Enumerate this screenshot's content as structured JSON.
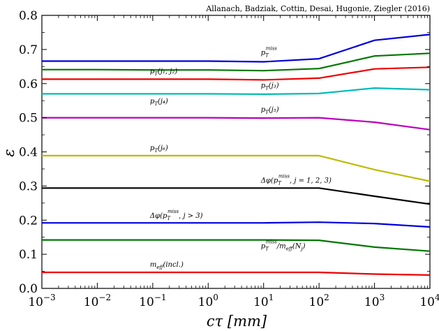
{
  "chart_data": {
    "type": "line",
    "credit": "Allanach, Badziak, Cottin, Desai, Hugonie, Ziegler (2016)",
    "xlabel": "cτ [mm]",
    "ylabel": "ε",
    "x_scale": "log",
    "xlim": [
      0.001,
      10000
    ],
    "ylim": [
      0.0,
      0.8
    ],
    "x_ticks": [
      0.001,
      0.01,
      0.1,
      1,
      10,
      100,
      1000,
      10000
    ],
    "x_tick_labels": [
      {
        "base": "10",
        "exp": "−3"
      },
      {
        "base": "10",
        "exp": "−2"
      },
      {
        "base": "10",
        "exp": "−1"
      },
      {
        "base": "10",
        "exp": "0"
      },
      {
        "base": "10",
        "exp": "1"
      },
      {
        "base": "10",
        "exp": "2"
      },
      {
        "base": "10",
        "exp": "3"
      },
      {
        "base": "10",
        "exp": "4"
      }
    ],
    "y_ticks": [
      0.0,
      0.1,
      0.2,
      0.3,
      0.4,
      0.5,
      0.6,
      0.7,
      0.8
    ],
    "y_tick_labels": [
      "0.0",
      "0.1",
      "0.2",
      "0.3",
      "0.4",
      "0.5",
      "0.6",
      "0.7",
      "0.8"
    ],
    "grid": false,
    "x": [
      0.001,
      0.01,
      0.1,
      1,
      10,
      100,
      1000,
      10000
    ],
    "series": [
      {
        "name": "p_T^miss",
        "color": "#0000dd",
        "label_x": 10,
        "label_y": 0.684,
        "values": [
          0.666,
          0.666,
          0.666,
          0.666,
          0.664,
          0.673,
          0.727,
          0.744
        ]
      },
      {
        "name": "p_T(j1, j2)",
        "color": "#007700",
        "label_x": 0.1,
        "label_y": 0.63,
        "values": [
          0.641,
          0.641,
          0.64,
          0.64,
          0.638,
          0.644,
          0.681,
          0.689
        ]
      },
      {
        "name": "p_T(j3)",
        "color": "#ee0000",
        "label_x": 10,
        "label_y": 0.588,
        "values": [
          0.613,
          0.613,
          0.613,
          0.613,
          0.611,
          0.616,
          0.643,
          0.648
        ]
      },
      {
        "name": "p_T(j4)",
        "color": "#00bbbb",
        "label_x": 0.1,
        "label_y": 0.542,
        "values": [
          0.57,
          0.57,
          0.57,
          0.57,
          0.569,
          0.571,
          0.587,
          0.582
        ]
      },
      {
        "name": "p_T(j5)",
        "color": "#bb00bb",
        "label_x": 10,
        "label_y": 0.518,
        "values": [
          0.5,
          0.5,
          0.5,
          0.5,
          0.499,
          0.5,
          0.487,
          0.465
        ]
      },
      {
        "name": "p_T(j6)",
        "color": "#bbbb00",
        "label_x": 0.1,
        "label_y": 0.405,
        "values": [
          0.389,
          0.389,
          0.389,
          0.389,
          0.389,
          0.389,
          0.348,
          0.314
        ]
      },
      {
        "name": "Δφ(p_T^miss, j = 1, 2, 3)",
        "color": "#000000",
        "label_x": 10,
        "label_y": 0.31,
        "values": [
          0.294,
          0.294,
          0.294,
          0.294,
          0.294,
          0.294,
          0.27,
          0.247
        ]
      },
      {
        "name": "Δφ(p_T^miss, j > 3)",
        "color": "#0000dd",
        "label_x": 0.1,
        "label_y": 0.207,
        "values": [
          0.192,
          0.192,
          0.192,
          0.192,
          0.192,
          0.194,
          0.19,
          0.18
        ]
      },
      {
        "name": "p_T^miss/m_eff(N_j)",
        "color": "#007700",
        "label_x": 10,
        "label_y": 0.118,
        "values": [
          0.142,
          0.142,
          0.142,
          0.142,
          0.142,
          0.141,
          0.121,
          0.109
        ]
      },
      {
        "name": "m_eff(incl.)",
        "color": "#ee0000",
        "label_x": 0.1,
        "label_y": 0.063,
        "values": [
          0.047,
          0.047,
          0.047,
          0.047,
          0.047,
          0.047,
          0.042,
          0.039
        ]
      }
    ],
    "labels": {
      "s0": {
        "base": "p",
        "sub": "T",
        "sup": "miss",
        "rest": ""
      },
      "s1": {
        "base": "p",
        "sub": "T",
        "rest": "(j₁, j₂)"
      },
      "s2": {
        "base": "p",
        "sub": "T",
        "rest": "(j₃)"
      },
      "s3": {
        "base": "p",
        "sub": "T",
        "rest": "(j₄)"
      },
      "s4": {
        "base": "p",
        "sub": "T",
        "rest": "(j₅)"
      },
      "s5": {
        "base": "p",
        "sub": "T",
        "rest": "(j₆)"
      },
      "s6": {
        "pre": "Δφ(",
        "base": "p",
        "sub": "T",
        "sup": "miss",
        "rest": ", j = 1, 2, 3)"
      },
      "s7": {
        "pre": "Δφ(",
        "base": "p",
        "sub": "T",
        "sup": "miss",
        "rest": ", j > 3)"
      },
      "s8": {
        "base": "p",
        "sub": "T",
        "sup": "miss",
        "rest": "/m",
        "sub2": "eff",
        "rest2": "(N",
        "sub3": "j",
        "rest3": ")"
      },
      "s9": {
        "base": "m",
        "sub": "eff",
        "rest": "(incl.)"
      }
    }
  }
}
